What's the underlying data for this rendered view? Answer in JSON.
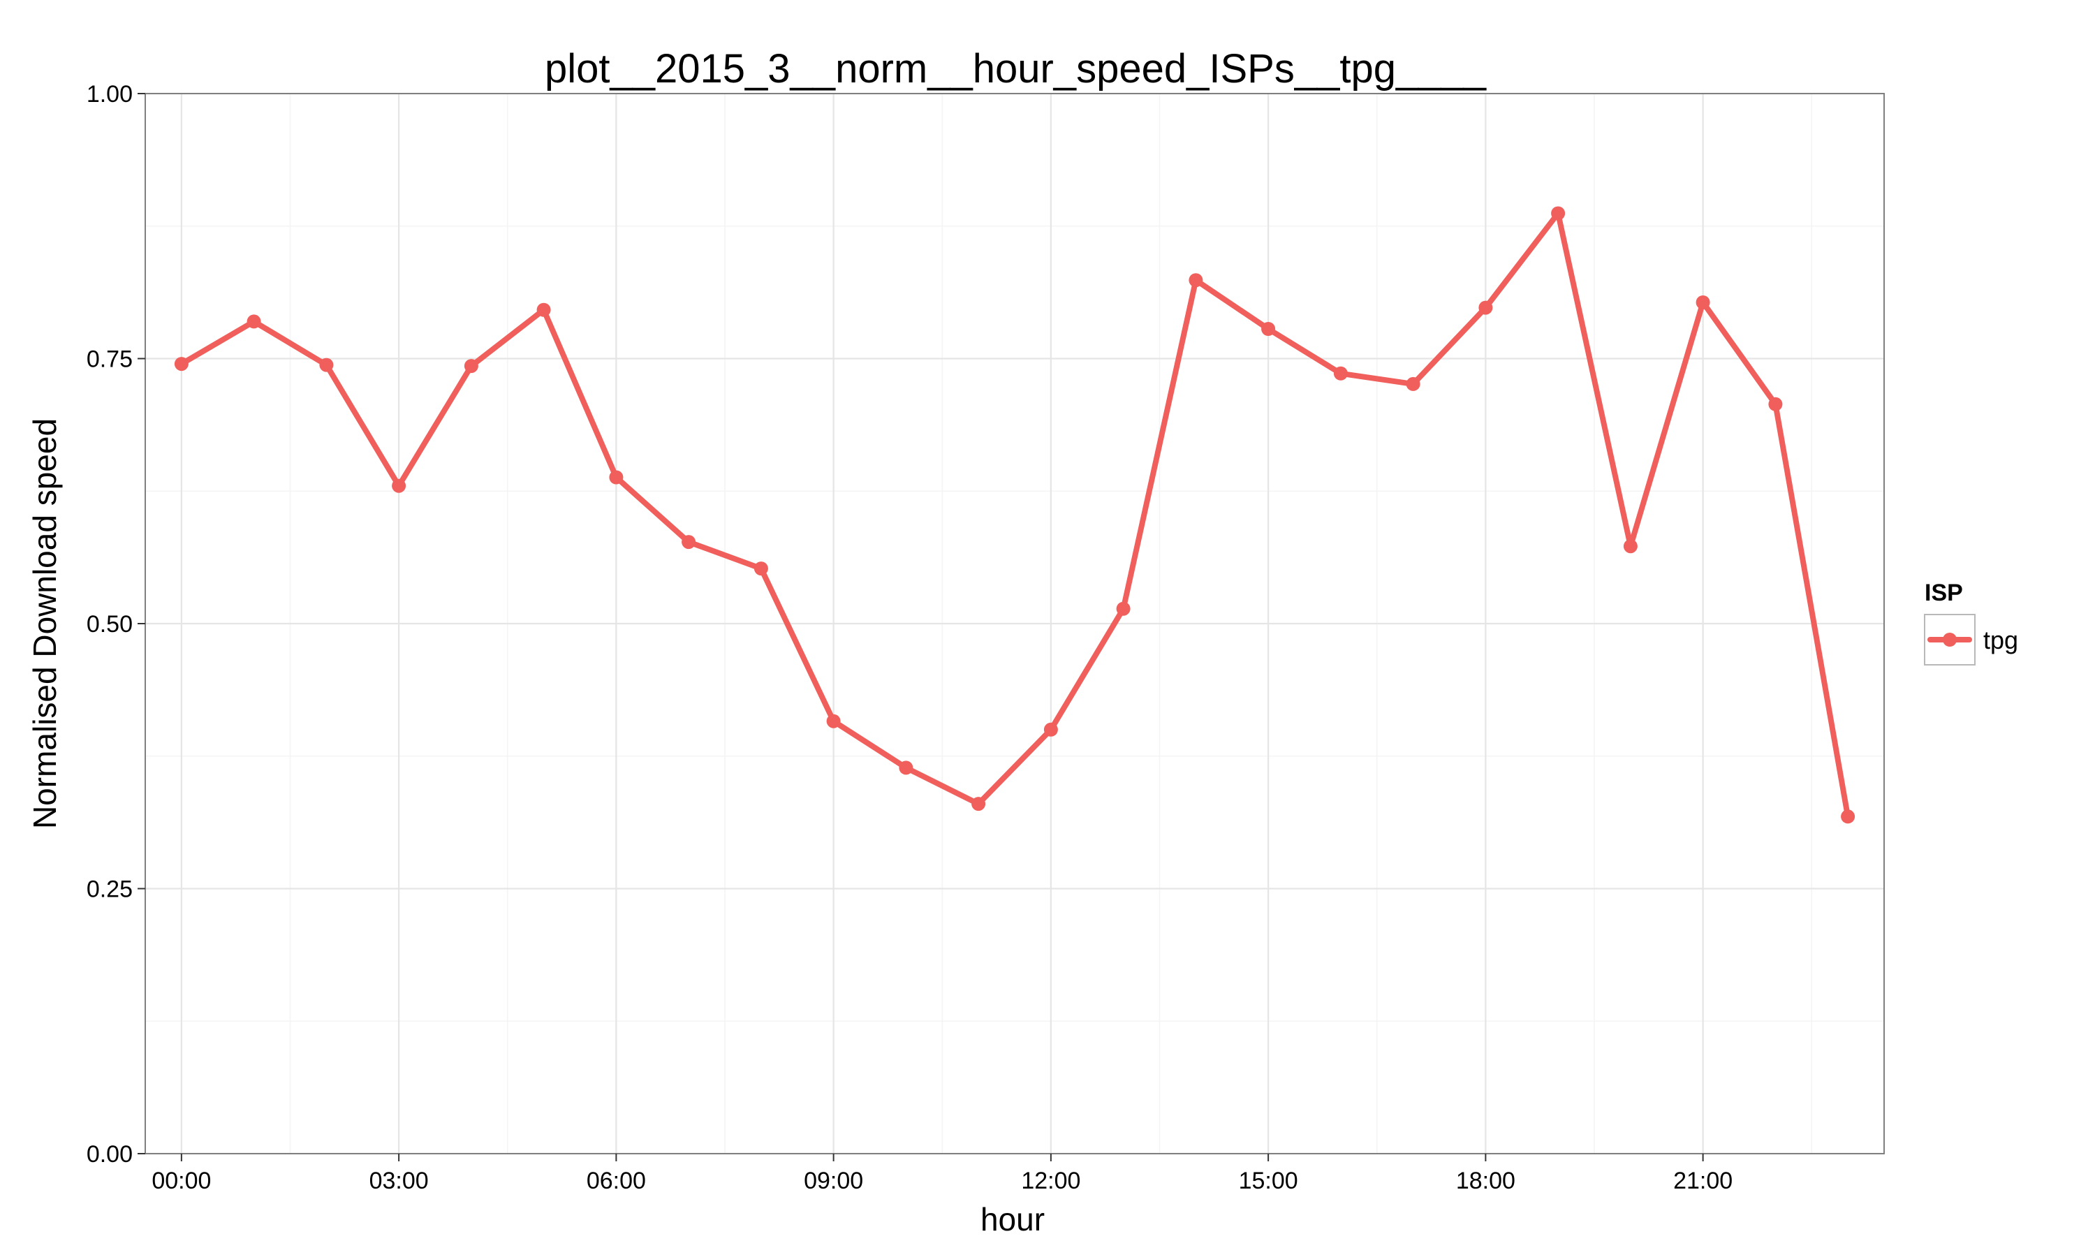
{
  "chart_data": {
    "type": "line",
    "title": "plot__2015_3__norm__hour_speed_ISPs__tpg____",
    "xlabel": "hour",
    "ylabel": "Normalised Download speed",
    "x": [
      "00:00",
      "01:00",
      "02:00",
      "03:00",
      "04:00",
      "05:00",
      "06:00",
      "07:00",
      "08:00",
      "09:00",
      "10:00",
      "11:00",
      "12:00",
      "13:00",
      "14:00",
      "15:00",
      "16:00",
      "17:00",
      "18:00",
      "19:00",
      "20:00",
      "21:00",
      "22:00",
      "23:00"
    ],
    "x_tick_labels": [
      "00:00",
      "03:00",
      "06:00",
      "09:00",
      "12:00",
      "15:00",
      "18:00",
      "21:00"
    ],
    "y_tick_labels": [
      "0.00",
      "0.25",
      "0.50",
      "0.75",
      "1.00"
    ],
    "y_ticks": [
      0,
      0.25,
      0.5,
      0.75,
      1.0
    ],
    "ylim": [
      0,
      1
    ],
    "xlim_hours": [
      -0.5,
      23.5
    ],
    "grid": true,
    "legend": {
      "title": "ISP",
      "placement": "right"
    },
    "series": [
      {
        "name": "tpg",
        "color": "#f05f5b",
        "values": [
          0.745,
          0.785,
          0.744,
          0.63,
          0.743,
          0.796,
          0.638,
          0.577,
          0.552,
          0.408,
          0.364,
          0.33,
          0.4,
          0.514,
          0.824,
          0.778,
          0.736,
          0.726,
          0.798,
          0.887,
          0.573,
          0.803,
          0.707,
          0.318
        ]
      }
    ]
  }
}
